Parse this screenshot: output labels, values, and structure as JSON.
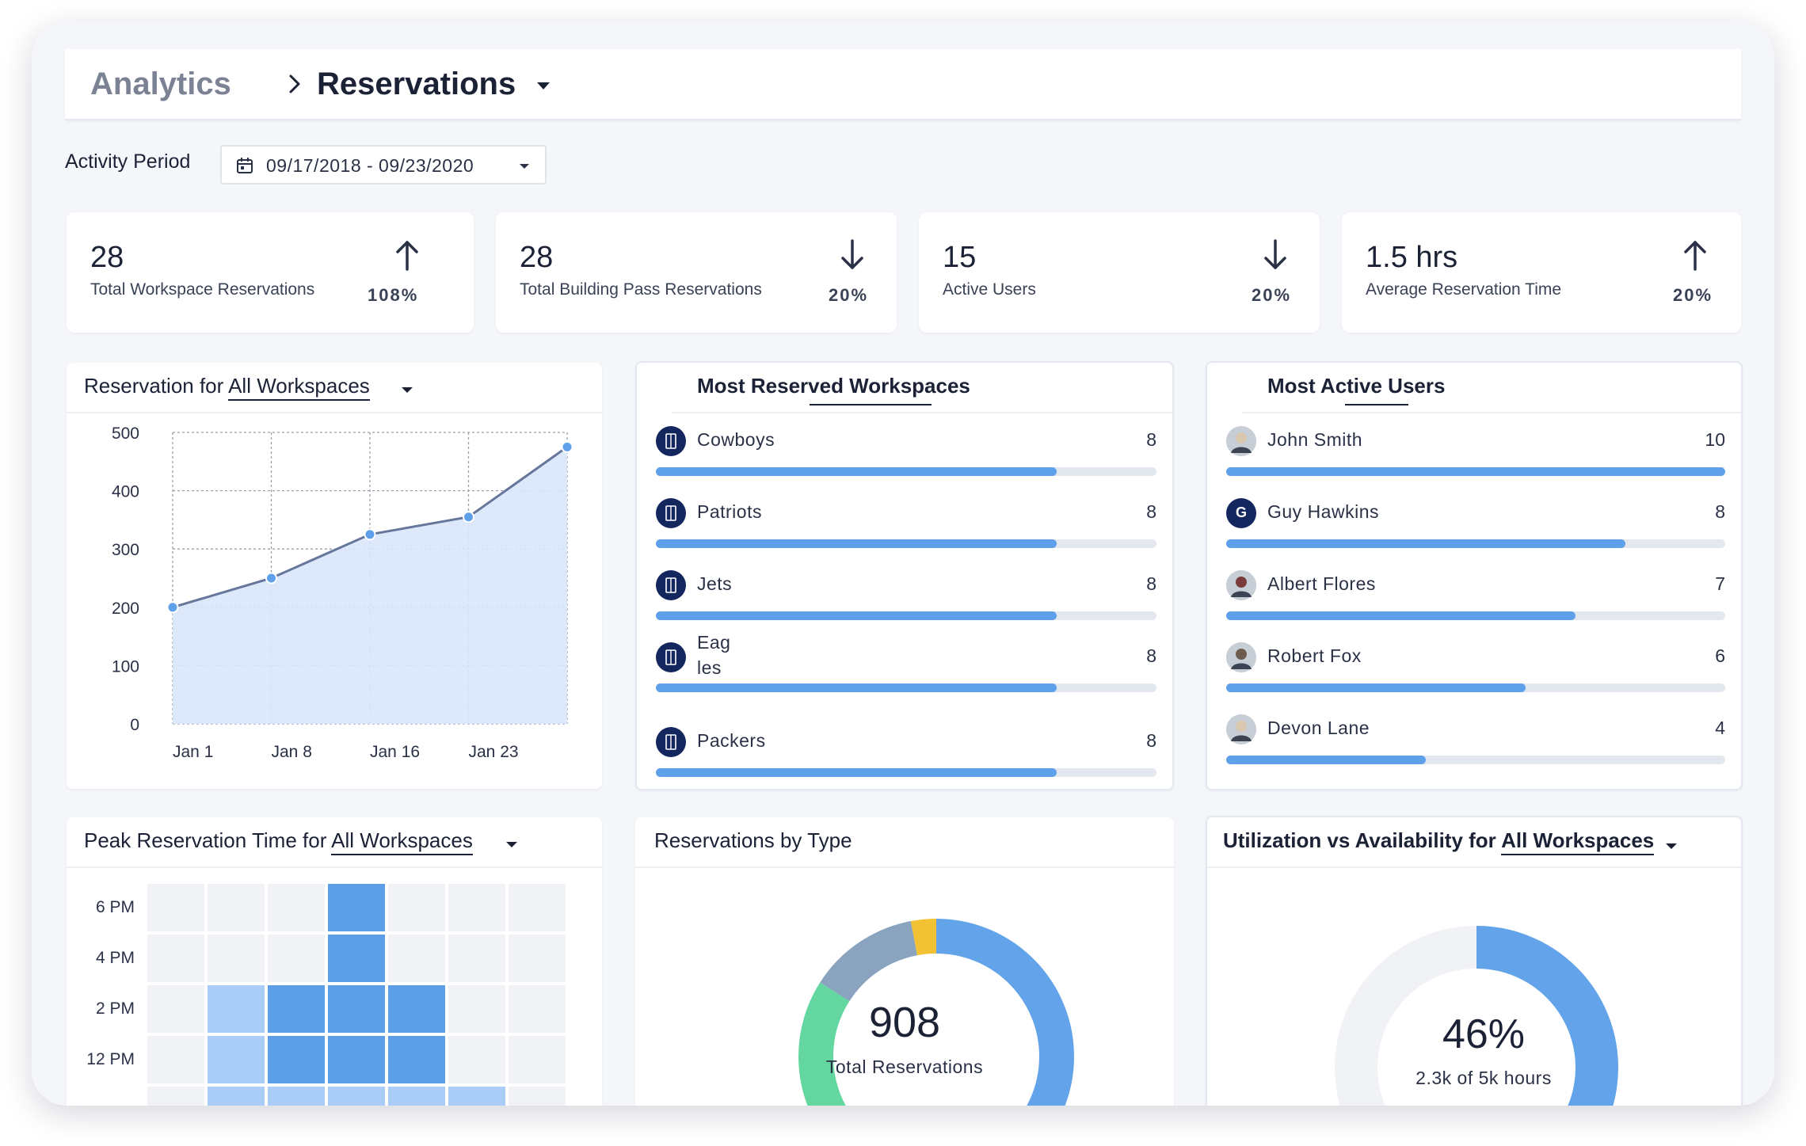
{
  "breadcrumb": {
    "root": "Analytics",
    "current": "Reservations"
  },
  "activity_period": {
    "label": "Activity Period",
    "value": "09/17/2018 - 09/23/2020"
  },
  "kpis": [
    {
      "value": "28",
      "label": "Total Workspace Reservations",
      "change": "108%",
      "direction": "up"
    },
    {
      "value": "28",
      "label": "Total Building Pass Reservations",
      "change": "20%",
      "direction": "down"
    },
    {
      "value": "15",
      "label": "Active Users",
      "change": "20%",
      "direction": "down"
    },
    {
      "value": "1.5 hrs",
      "label": "Average Reservation Time",
      "change": "20%",
      "direction": "up"
    }
  ],
  "reservation_chart": {
    "title_prefix": "Reservation for ",
    "title_link": "All Workspaces",
    "chart_data": {
      "type": "area",
      "y_ticks": [
        "500",
        "400",
        "300",
        "200",
        "100",
        "0"
      ],
      "ylim": [
        0,
        500
      ],
      "x_ticks": [
        "Jan 1",
        "Jan 8",
        "Jan 16",
        "Jan 23"
      ],
      "points": [
        {
          "x": 0,
          "y": 200
        },
        {
          "x": 1,
          "y": 250
        },
        {
          "x": 2,
          "y": 325
        },
        {
          "x": 3,
          "y": 355
        },
        {
          "x": 4,
          "y": 475
        }
      ],
      "grid": true
    }
  },
  "most_reserved": {
    "title": "Most Reserved Workspaces",
    "max": 10,
    "items": [
      {
        "name": "Cowboys",
        "count": "8",
        "value": 8
      },
      {
        "name": "Patriots",
        "count": "8",
        "value": 8
      },
      {
        "name": "Jets",
        "count": "8",
        "value": 8
      },
      {
        "name": "Eag\nles",
        "count": "8",
        "value": 8
      },
      {
        "name": "Packers",
        "count": "8",
        "value": 8
      }
    ]
  },
  "most_active": {
    "title": "Most Active Users",
    "max": 10,
    "items": [
      {
        "name": "John Smith",
        "count": "10",
        "value": 10,
        "avatar": "photo"
      },
      {
        "name": "Guy Hawkins",
        "count": "8",
        "value": 8,
        "avatar": "initial",
        "initial": "G"
      },
      {
        "name": "Albert Flores",
        "count": "7",
        "value": 7,
        "avatar": "photo"
      },
      {
        "name": "Robert Fox",
        "count": "6",
        "value": 6,
        "avatar": "photo"
      },
      {
        "name": "Devon Lane",
        "count": "4",
        "value": 4,
        "avatar": "photo"
      }
    ]
  },
  "peak_time": {
    "title_prefix": "Peak Reservation Time for ",
    "title_link": "All Workspaces",
    "chart_data": {
      "type": "heatmap",
      "y_labels": [
        "6 PM",
        "4 PM",
        "2 PM",
        "12 PM"
      ],
      "rows": [
        [
          0,
          0,
          0,
          2,
          0,
          0,
          0
        ],
        [
          0,
          0,
          0,
          2,
          0,
          0,
          0
        ],
        [
          0,
          1,
          2,
          2,
          2,
          0,
          0
        ],
        [
          0,
          1,
          2,
          2,
          2,
          0,
          0
        ],
        [
          0,
          1,
          1,
          1,
          1,
          1,
          0
        ]
      ]
    }
  },
  "by_type": {
    "title": "Reservations by Type",
    "total": "908",
    "total_label": "Total Reservations",
    "chart_data": {
      "type": "pie",
      "slices": [
        {
          "value": 0.54,
          "color": "#62a3ea"
        },
        {
          "value": 0.3,
          "color": "#64d7a1"
        },
        {
          "value": 0.13,
          "color": "#8aa3be"
        },
        {
          "value": 0.03,
          "color": "#f2c134"
        }
      ]
    }
  },
  "utilization": {
    "title_prefix": "Utilization vs Availability for ",
    "title_link": "All Workspaces",
    "percent": "46%",
    "subtitle": "2.3k of 5k hours",
    "fraction": 0.46
  },
  "colors": {
    "accent": "#5ea1ea",
    "navy": "#13265e",
    "heat_strong": "#5c9ee8",
    "heat_light": "#a9cdf6",
    "heat_empty": "#f0f2f6"
  }
}
